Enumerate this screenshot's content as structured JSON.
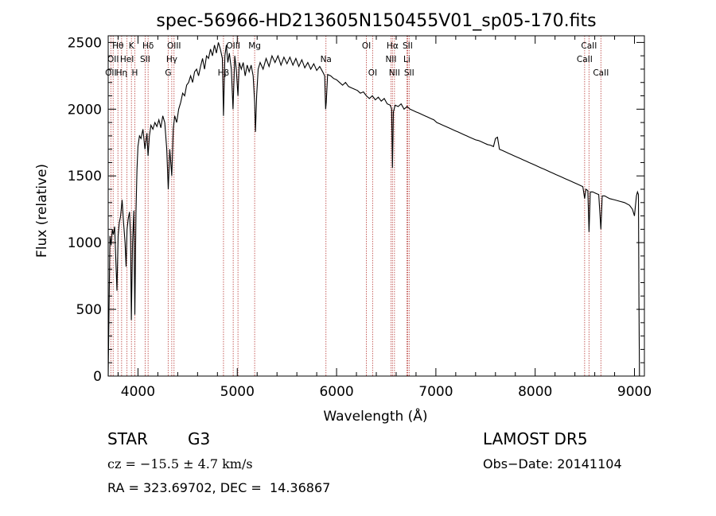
{
  "chart_data": {
    "type": "line",
    "title": "spec-56966-HD213605N150455V01_sp05-170.fits",
    "xlabel": "Wavelength (Å)",
    "ylabel": "Flux (relative)",
    "xlim": [
      3700,
      9100
    ],
    "ylim": [
      0,
      2550
    ],
    "xticks": [
      4000,
      5000,
      6000,
      7000,
      8000,
      9000
    ],
    "yticks": [
      0,
      500,
      1000,
      1500,
      2000,
      2500
    ],
    "grid": false,
    "line_color": "#000000",
    "marker_color": "#c0504d",
    "series": [
      {
        "values": [
          [
            3700,
            0
          ],
          [
            3708,
            480
          ],
          [
            3718,
            1050
          ],
          [
            3730,
            980
          ],
          [
            3742,
            1100
          ],
          [
            3752,
            1060
          ],
          [
            3765,
            1120
          ],
          [
            3775,
            900
          ],
          [
            3788,
            640
          ],
          [
            3800,
            1050
          ],
          [
            3812,
            1150
          ],
          [
            3825,
            1200
          ],
          [
            3840,
            1320
          ],
          [
            3855,
            1150
          ],
          [
            3870,
            1000
          ],
          [
            3880,
            820
          ],
          [
            3890,
            1100
          ],
          [
            3902,
            1180
          ],
          [
            3915,
            1230
          ],
          [
            3925,
            1050
          ],
          [
            3933,
            420
          ],
          [
            3945,
            1000
          ],
          [
            3958,
            1240
          ],
          [
            3968,
            460
          ],
          [
            3980,
            1220
          ],
          [
            3990,
            1550
          ],
          [
            4000,
            1720
          ],
          [
            4015,
            1800
          ],
          [
            4030,
            1780
          ],
          [
            4050,
            1850
          ],
          [
            4070,
            1700
          ],
          [
            4090,
            1820
          ],
          [
            4101,
            1650
          ],
          [
            4115,
            1800
          ],
          [
            4130,
            1880
          ],
          [
            4150,
            1850
          ],
          [
            4170,
            1900
          ],
          [
            4190,
            1870
          ],
          [
            4210,
            1920
          ],
          [
            4230,
            1860
          ],
          [
            4250,
            1950
          ],
          [
            4270,
            1900
          ],
          [
            4290,
            1700
          ],
          [
            4305,
            1400
          ],
          [
            4320,
            1700
          ],
          [
            4340,
            1500
          ],
          [
            4355,
            1850
          ],
          [
            4370,
            1950
          ],
          [
            4390,
            1900
          ],
          [
            4410,
            2000
          ],
          [
            4430,
            2050
          ],
          [
            4450,
            2120
          ],
          [
            4470,
            2100
          ],
          [
            4490,
            2180
          ],
          [
            4510,
            2200
          ],
          [
            4530,
            2250
          ],
          [
            4550,
            2200
          ],
          [
            4570,
            2280
          ],
          [
            4590,
            2300
          ],
          [
            4610,
            2250
          ],
          [
            4630,
            2320
          ],
          [
            4650,
            2380
          ],
          [
            4670,
            2300
          ],
          [
            4690,
            2400
          ],
          [
            4710,
            2380
          ],
          [
            4730,
            2450
          ],
          [
            4750,
            2400
          ],
          [
            4770,
            2480
          ],
          [
            4790,
            2420
          ],
          [
            4810,
            2500
          ],
          [
            4830,
            2450
          ],
          [
            4850,
            2380
          ],
          [
            4861,
            1950
          ],
          [
            4875,
            2400
          ],
          [
            4890,
            2480
          ],
          [
            4905,
            2350
          ],
          [
            4920,
            2420
          ],
          [
            4940,
            2300
          ],
          [
            4957,
            2000
          ],
          [
            4975,
            2400
          ],
          [
            4990,
            2300
          ],
          [
            5007,
            2100
          ],
          [
            5020,
            2350
          ],
          [
            5040,
            2300
          ],
          [
            5060,
            2350
          ],
          [
            5080,
            2250
          ],
          [
            5100,
            2330
          ],
          [
            5120,
            2280
          ],
          [
            5140,
            2330
          ],
          [
            5160,
            2250
          ],
          [
            5175,
            2050
          ],
          [
            5183,
            1830
          ],
          [
            5195,
            2100
          ],
          [
            5210,
            2300
          ],
          [
            5230,
            2350
          ],
          [
            5260,
            2300
          ],
          [
            5290,
            2380
          ],
          [
            5320,
            2320
          ],
          [
            5350,
            2400
          ],
          [
            5380,
            2350
          ],
          [
            5410,
            2400
          ],
          [
            5440,
            2330
          ],
          [
            5470,
            2390
          ],
          [
            5500,
            2340
          ],
          [
            5530,
            2390
          ],
          [
            5560,
            2330
          ],
          [
            5590,
            2380
          ],
          [
            5620,
            2320
          ],
          [
            5650,
            2370
          ],
          [
            5680,
            2310
          ],
          [
            5710,
            2350
          ],
          [
            5740,
            2300
          ],
          [
            5770,
            2340
          ],
          [
            5800,
            2290
          ],
          [
            5830,
            2320
          ],
          [
            5860,
            2280
          ],
          [
            5880,
            2250
          ],
          [
            5890,
            2000
          ],
          [
            5896,
            2050
          ],
          [
            5910,
            2260
          ],
          [
            5940,
            2250
          ],
          [
            5970,
            2230
          ],
          [
            6000,
            2220
          ],
          [
            6030,
            2200
          ],
          [
            6060,
            2180
          ],
          [
            6090,
            2200
          ],
          [
            6120,
            2170
          ],
          [
            6150,
            2160
          ],
          [
            6180,
            2150
          ],
          [
            6210,
            2140
          ],
          [
            6240,
            2120
          ],
          [
            6270,
            2130
          ],
          [
            6300,
            2100
          ],
          [
            6330,
            2080
          ],
          [
            6360,
            2100
          ],
          [
            6390,
            2070
          ],
          [
            6420,
            2090
          ],
          [
            6450,
            2060
          ],
          [
            6480,
            2080
          ],
          [
            6510,
            2040
          ],
          [
            6540,
            2030
          ],
          [
            6555,
            2000
          ],
          [
            6563,
            1560
          ],
          [
            6572,
            1980
          ],
          [
            6590,
            2030
          ],
          [
            6620,
            2020
          ],
          [
            6650,
            2040
          ],
          [
            6680,
            2000
          ],
          [
            6710,
            2020
          ],
          [
            6740,
            2000
          ],
          [
            6770,
            1990
          ],
          [
            6800,
            1980
          ],
          [
            6830,
            1970
          ],
          [
            6860,
            1960
          ],
          [
            6890,
            1950
          ],
          [
            6920,
            1940
          ],
          [
            6950,
            1930
          ],
          [
            6980,
            1920
          ],
          [
            7010,
            1900
          ],
          [
            7040,
            1890
          ],
          [
            7070,
            1880
          ],
          [
            7100,
            1870
          ],
          [
            7130,
            1860
          ],
          [
            7160,
            1850
          ],
          [
            7190,
            1840
          ],
          [
            7220,
            1830
          ],
          [
            7250,
            1820
          ],
          [
            7280,
            1810
          ],
          [
            7310,
            1800
          ],
          [
            7340,
            1790
          ],
          [
            7370,
            1780
          ],
          [
            7400,
            1770
          ],
          [
            7430,
            1765
          ],
          [
            7460,
            1755
          ],
          [
            7490,
            1745
          ],
          [
            7520,
            1735
          ],
          [
            7550,
            1730
          ],
          [
            7580,
            1720
          ],
          [
            7600,
            1780
          ],
          [
            7620,
            1790
          ],
          [
            7640,
            1700
          ],
          [
            7670,
            1690
          ],
          [
            7700,
            1680
          ],
          [
            7730,
            1670
          ],
          [
            7760,
            1660
          ],
          [
            7790,
            1650
          ],
          [
            7820,
            1640
          ],
          [
            7850,
            1630
          ],
          [
            7880,
            1620
          ],
          [
            7910,
            1610
          ],
          [
            7940,
            1600
          ],
          [
            7970,
            1590
          ],
          [
            8000,
            1580
          ],
          [
            8030,
            1570
          ],
          [
            8060,
            1560
          ],
          [
            8090,
            1550
          ],
          [
            8120,
            1540
          ],
          [
            8150,
            1530
          ],
          [
            8180,
            1520
          ],
          [
            8210,
            1510
          ],
          [
            8240,
            1500
          ],
          [
            8270,
            1490
          ],
          [
            8300,
            1480
          ],
          [
            8330,
            1470
          ],
          [
            8360,
            1460
          ],
          [
            8390,
            1450
          ],
          [
            8420,
            1440
          ],
          [
            8450,
            1430
          ],
          [
            8480,
            1420
          ],
          [
            8498,
            1330
          ],
          [
            8510,
            1400
          ],
          [
            8530,
            1390
          ],
          [
            8542,
            1080
          ],
          [
            8555,
            1380
          ],
          [
            8580,
            1380
          ],
          [
            8610,
            1370
          ],
          [
            8640,
            1360
          ],
          [
            8662,
            1100
          ],
          [
            8675,
            1350
          ],
          [
            8700,
            1350
          ],
          [
            8750,
            1330
          ],
          [
            8800,
            1320
          ],
          [
            8850,
            1310
          ],
          [
            8900,
            1300
          ],
          [
            8950,
            1280
          ],
          [
            8980,
            1250
          ],
          [
            9000,
            1200
          ],
          [
            9010,
            1280
          ],
          [
            9020,
            1350
          ],
          [
            9030,
            1380
          ],
          [
            9040,
            1360
          ],
          [
            9045,
            600
          ],
          [
            9050,
            0
          ]
        ]
      }
    ],
    "lines": [
      {
        "x": 3727,
        "label": "OII",
        "row": 2
      },
      {
        "x": 3750,
        "label": "OII",
        "row": 1
      },
      {
        "x": 3798,
        "label": "Hθ",
        "row": 0
      },
      {
        "x": 3835,
        "label": "Hη",
        "row": 2
      },
      {
        "x": 3889,
        "label": "HeI",
        "row": 1
      },
      {
        "x": 3934,
        "label": "K",
        "row": 0
      },
      {
        "x": 3968,
        "label": "H",
        "row": 2
      },
      {
        "x": 4072,
        "label": "SII",
        "row": 1
      },
      {
        "x": 4102,
        "label": "Hδ",
        "row": 0
      },
      {
        "x": 4304,
        "label": "G",
        "row": 2
      },
      {
        "x": 4340,
        "label": "Hγ",
        "row": 1
      },
      {
        "x": 4363,
        "label": "OIII",
        "row": 0
      },
      {
        "x": 4861,
        "label": "Hβ",
        "row": 2
      },
      {
        "x": 4959,
        "label": "OIII",
        "row": 0
      },
      {
        "x": 5007,
        "label": "",
        "row": 0
      },
      {
        "x": 5175,
        "label": "Mg",
        "row": 0
      },
      {
        "x": 5893,
        "label": "Na",
        "row": 1
      },
      {
        "x": 6300,
        "label": "OI",
        "row": 0
      },
      {
        "x": 6363,
        "label": "OI",
        "row": 2
      },
      {
        "x": 6548,
        "label": "NII",
        "row": 1
      },
      {
        "x": 6563,
        "label": "Hα",
        "row": 0
      },
      {
        "x": 6583,
        "label": "NII",
        "row": 2
      },
      {
        "x": 6708,
        "label": "Li",
        "row": 1
      },
      {
        "x": 6716,
        "label": "SII",
        "row": 0
      },
      {
        "x": 6731,
        "label": "SII",
        "row": 2
      },
      {
        "x": 8498,
        "label": "CaII",
        "row": 1
      },
      {
        "x": 8542,
        "label": "CaII",
        "row": 0
      },
      {
        "x": 8662,
        "label": "CaII",
        "row": 2
      }
    ]
  },
  "info": {
    "object_class": "STAR",
    "subclass": "G3",
    "survey": "LAMOST DR5",
    "cz": "cz = −15.5 ± 4.7 km/s",
    "obs_date": "Obs−Date: 20141104",
    "coords": "RA = 323.69702, DEC =  14.36867"
  }
}
